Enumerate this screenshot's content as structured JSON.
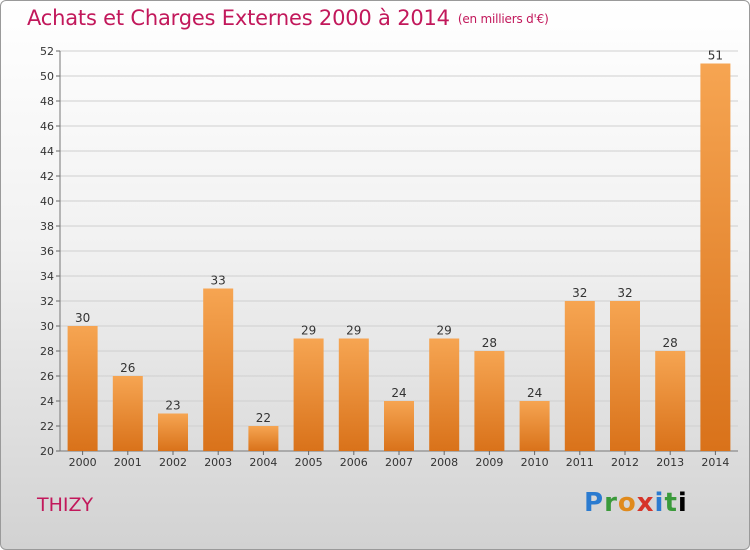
{
  "header": {
    "title": "Achats et Charges Externes 2000 à 2014",
    "unit": "(en milliers d'€)"
  },
  "footer": {
    "city": "THIZY",
    "logo_letters": [
      "P",
      "r",
      "o",
      "x",
      "i",
      "t",
      "i"
    ]
  },
  "colors": {
    "title": "#c2185b",
    "bar_top": "#f6a552",
    "bar_bottom": "#d9721a"
  },
  "chart_data": {
    "type": "bar",
    "title": "Achats et Charges Externes 2000 à 2014",
    "subtitle": "(en milliers d'€)",
    "xlabel": "",
    "ylabel": "",
    "categories": [
      "2000",
      "2001",
      "2002",
      "2003",
      "2004",
      "2005",
      "2006",
      "2007",
      "2008",
      "2009",
      "2010",
      "2011",
      "2012",
      "2013",
      "2014"
    ],
    "values": [
      30,
      26,
      23,
      33,
      22,
      29,
      29,
      24,
      29,
      28,
      24,
      32,
      32,
      28,
      51
    ],
    "ylim": [
      20,
      52
    ],
    "yticks": [
      20,
      22,
      24,
      26,
      28,
      30,
      32,
      34,
      36,
      38,
      40,
      42,
      44,
      46,
      48,
      50,
      52
    ],
    "grid": true,
    "legend": "none"
  }
}
